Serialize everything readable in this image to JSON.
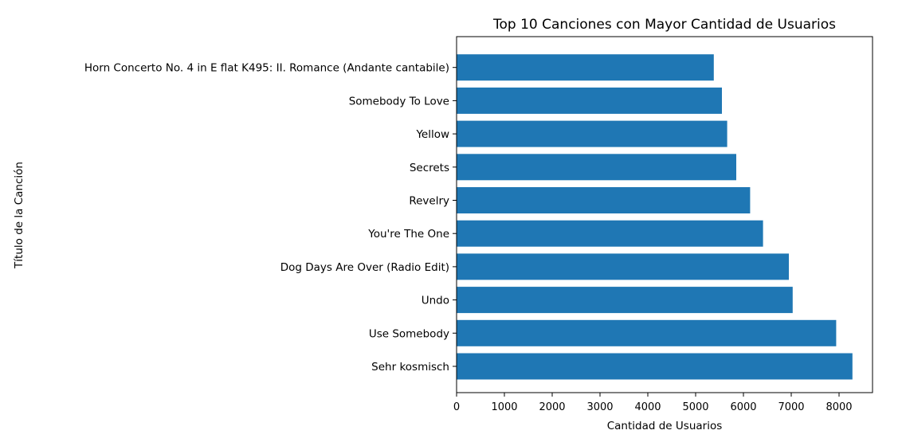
{
  "chart_data": {
    "type": "bar",
    "orientation": "horizontal",
    "title": "Top 10 Canciones con Mayor Cantidad de Usuarios",
    "xlabel": "Cantidad de Usuarios",
    "ylabel": "Título de la Canción",
    "categories": [
      "Sehr kosmisch",
      "Use Somebody",
      "Undo",
      "Dog Days Are Over (Radio Edit)",
      "You're The One",
      "Revelry",
      "Secrets",
      "Yellow",
      "Somebody To Love",
      "Horn Concerto No. 4 in E flat K495: II. Romance (Andante cantabile)"
    ],
    "values": [
      8280,
      7940,
      7030,
      6950,
      6410,
      6140,
      5850,
      5660,
      5550,
      5380
    ],
    "xlim": [
      0,
      8700
    ],
    "xticks": [
      0,
      1000,
      2000,
      3000,
      4000,
      5000,
      6000,
      7000,
      8000
    ],
    "bar_color": "#1f77b4",
    "grid": false,
    "legend": "none"
  }
}
